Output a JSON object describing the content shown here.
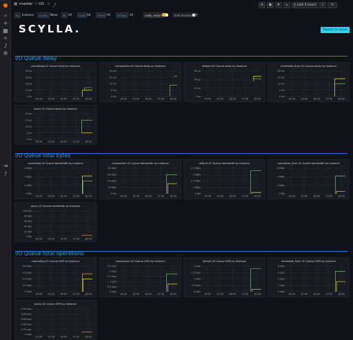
{
  "breadcrumb": {
    "folder": "master",
    "separator": ">",
    "dashboard": "I/O"
  },
  "topbar": {
    "time_range": "Last 3 hours"
  },
  "variables": [
    {
      "label": "by",
      "value": "Instance"
    },
    {
      "label": "cluster",
      "value": "None"
    },
    {
      "label": "dc",
      "value": "All"
    },
    {
      "label": "node",
      "value": "All"
    },
    {
      "label": "shard",
      "value": "All"
    },
    {
      "label": "ioClass",
      "value": "All"
    }
  ],
  "toggles": [
    {
      "label": "node_restart",
      "on": true
    },
    {
      "label": "shell threshold",
      "on": false
    }
  ],
  "logo": "SCYLLA.",
  "report_button": "Report an issue",
  "sections": [
    {
      "title": "I/O Queue delay",
      "panels": [
        {
          "title": "commitlog I/O Queue delay by Instance",
          "yticks": [
            "40 µs",
            "30 µs",
            "20 µs",
            "10 µs",
            "0 µs"
          ],
          "spikes": [
            [
              0.83,
              0.75,
              1.0,
              "#fade2a"
            ],
            [
              0.87,
              0.65,
              0.75,
              "#73bf69"
            ]
          ]
        },
        {
          "title": "compaction I/O Queue delay by Instance",
          "yticks": [
            "20 ms",
            "15 ms",
            "10 ms",
            "5 ms",
            "0 ms"
          ],
          "spikes": [
            [
              0.95,
              0.2,
              0.2,
              "#ff9830"
            ],
            [
              0.88,
              0.55,
              1.0,
              "#73bf69"
            ]
          ]
        },
        {
          "title": "default I/O Queue delay by Instance",
          "yticks": [
            "60 µs",
            "40 µs",
            "20 µs",
            "0 µs"
          ],
          "spikes": [
            [
              0.87,
              0.2,
              0.4,
              "#fade2a"
            ],
            [
              0.87,
              0.3,
              0.3,
              "#73bf69"
            ]
          ]
        },
        {
          "title": "memtable_flush I/O Queue delay by Instance",
          "yticks": [
            "20 ms",
            "15 ms",
            "10 ms",
            "5 ms",
            "0 ms"
          ],
          "spikes": [
            [
              0.82,
              0.3,
              1.0,
              "#fade2a"
            ],
            [
              0.82,
              0.5,
              0.5,
              "#73bf69"
            ]
          ]
        },
        {
          "title": "query I/O Queue delay by Instance",
          "yticks": [
            "20 µs",
            "15 µs",
            "10 µs",
            "5 µs",
            "0 µs"
          ],
          "spikes": [
            [
              0.82,
              0.25,
              0.75,
              "#73bf69"
            ],
            [
              0.82,
              0.75,
              0.75,
              "#fade2a"
            ]
          ]
        }
      ]
    },
    {
      "title": "I/O Queue total bytes",
      "panels": [
        {
          "title": "commitlog I/O Queue bandwidth by Instance",
          "yticks": [
            "6 kB/s",
            "4 kB/s",
            "2 kB/s",
            "0 B/s"
          ],
          "spikes": [
            [
              0.83,
              0.3,
              1.0,
              "#fade2a"
            ],
            [
              0.84,
              0.5,
              1.0,
              "#73bf69"
            ]
          ]
        },
        {
          "title": "compaction I/O Queue bandwidth by Instance",
          "yticks": [
            "80 kB/s",
            "60 kB/s",
            "40 kB/s",
            "20 kB/s",
            "0 B/s"
          ],
          "spikes": [
            [
              0.82,
              0.25,
              1.0,
              "#73bf69"
            ],
            [
              0.84,
              0.6,
              1.0,
              "#fade2a"
            ]
          ]
        },
        {
          "title": "default I/O Queue bandwidth by Instance",
          "yticks": [
            "2.5 MB/s",
            "2 MB/s",
            "1.5 MB/s",
            "1 MB/s",
            "0 B/s"
          ],
          "spikes": [
            [
              0.82,
              0.1,
              1.0,
              "#73bf69"
            ],
            [
              0.84,
              0.95,
              1.0,
              "#fade2a"
            ]
          ]
        },
        {
          "title": "memtable_flush I/O Queue bandwidth by Instance",
          "yticks": [
            "6 MB/s",
            "4 MB/s",
            "2 MB/s",
            "0 B/s"
          ],
          "spikes": [
            [
              0.83,
              0.3,
              1.0,
              "#73bf69"
            ],
            [
              0.85,
              0.9,
              1.0,
              "#fade2a"
            ]
          ]
        },
        {
          "title": "query I/O Queue bandwidth by Instance",
          "yticks": [
            "100 B/s",
            "80 B/s",
            "60 B/s",
            "40 B/s",
            "20 B/s",
            "0 B/s"
          ],
          "spikes": [
            [
              0.82,
              0.95,
              0.95,
              "#ff9830"
            ]
          ]
        }
      ]
    },
    {
      "title": "I/O Queue total operations",
      "panels": [
        {
          "title": "commitlog I/O Queue IOPS by Instance",
          "yticks": [
            "0.8 iops",
            "0.6 iops",
            "0.4 iops",
            "0.2 iops",
            "0 iops"
          ],
          "spikes": [
            [
              0.83,
              0.3,
              1.0,
              "#ff9830"
            ],
            [
              0.84,
              0.5,
              1.0,
              "#fade2a"
            ]
          ]
        },
        {
          "title": "compaction I/O Queue IOPS by Instance",
          "yticks": [
            "2.5 iops",
            "2 iops",
            "1.5 iops",
            "1 iops",
            "0.5 iops",
            "0 iops"
          ],
          "spikes": [
            [
              0.82,
              0.3,
              1.0,
              "#73bf69"
            ],
            [
              0.84,
              0.7,
              1.0,
              "#fade2a"
            ]
          ]
        },
        {
          "title": "default I/O Queue IOPS by Instance",
          "yticks": [
            "2 iops",
            "1.5 iops",
            "1 iops",
            "0.5 iops",
            "0 iops"
          ],
          "spikes": [
            [
              0.82,
              0.1,
              1.0,
              "#73bf69"
            ],
            [
              0.84,
              0.9,
              1.0,
              "#fade2a"
            ]
          ]
        },
        {
          "title": "memtable_flush I/O Queue IOPS by Instance",
          "yticks": [
            "4 iops",
            "3 iops",
            "2 iops",
            "1 iops",
            "0 iops"
          ],
          "spikes": [
            [
              0.83,
              0.2,
              1.0,
              "#73bf69"
            ],
            [
              0.85,
              0.6,
              1.0,
              "#fade2a"
            ]
          ]
        },
        {
          "title": "query I/O Queue IOPS by Instance",
          "yticks": [
            "1.00 iops",
            "0.80 iops",
            "0.60 iops",
            "0.40 iops",
            "0.20 iops",
            "0 iops"
          ],
          "spikes": [
            [
              0.82,
              0.9,
              0.9,
              "#ff9830"
            ]
          ]
        }
      ]
    }
  ],
  "xticks": [
    "14:00",
    "15:00",
    "16:00",
    "17:00",
    "18:00"
  ],
  "colors": {
    "accent": "#33a2e5",
    "section_rule": "#3274d9",
    "panel_bg": "#181b1f"
  }
}
